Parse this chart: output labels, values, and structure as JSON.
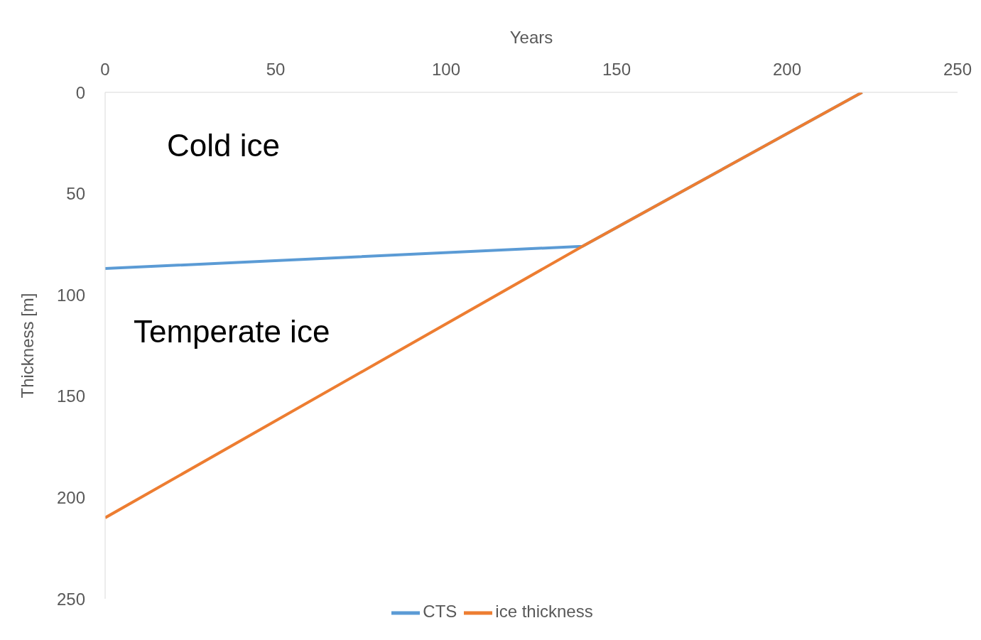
{
  "chart_data": {
    "type": "line",
    "xlabel": "Years",
    "ylabel": "Thickness [m]",
    "xlim": [
      0,
      250
    ],
    "xticks": [
      0,
      50,
      100,
      150,
      200,
      250
    ],
    "ylim": [
      250,
      0
    ],
    "yticks": [
      0,
      50,
      100,
      150,
      200,
      250
    ],
    "series": [
      {
        "name": "CTS",
        "color": "#5b9bd5",
        "x": [
          0,
          140,
          222
        ],
        "values": [
          87,
          76,
          0
        ]
      },
      {
        "name": "ice thickness",
        "color": "#ed7d31",
        "x": [
          0,
          140,
          222
        ],
        "values": [
          210,
          76,
          0
        ]
      }
    ],
    "annotations": [
      "Cold ice",
      "Temperate ice"
    ],
    "grid": false,
    "legend": "bottom",
    "marker": "none",
    "line_style": "solid"
  }
}
